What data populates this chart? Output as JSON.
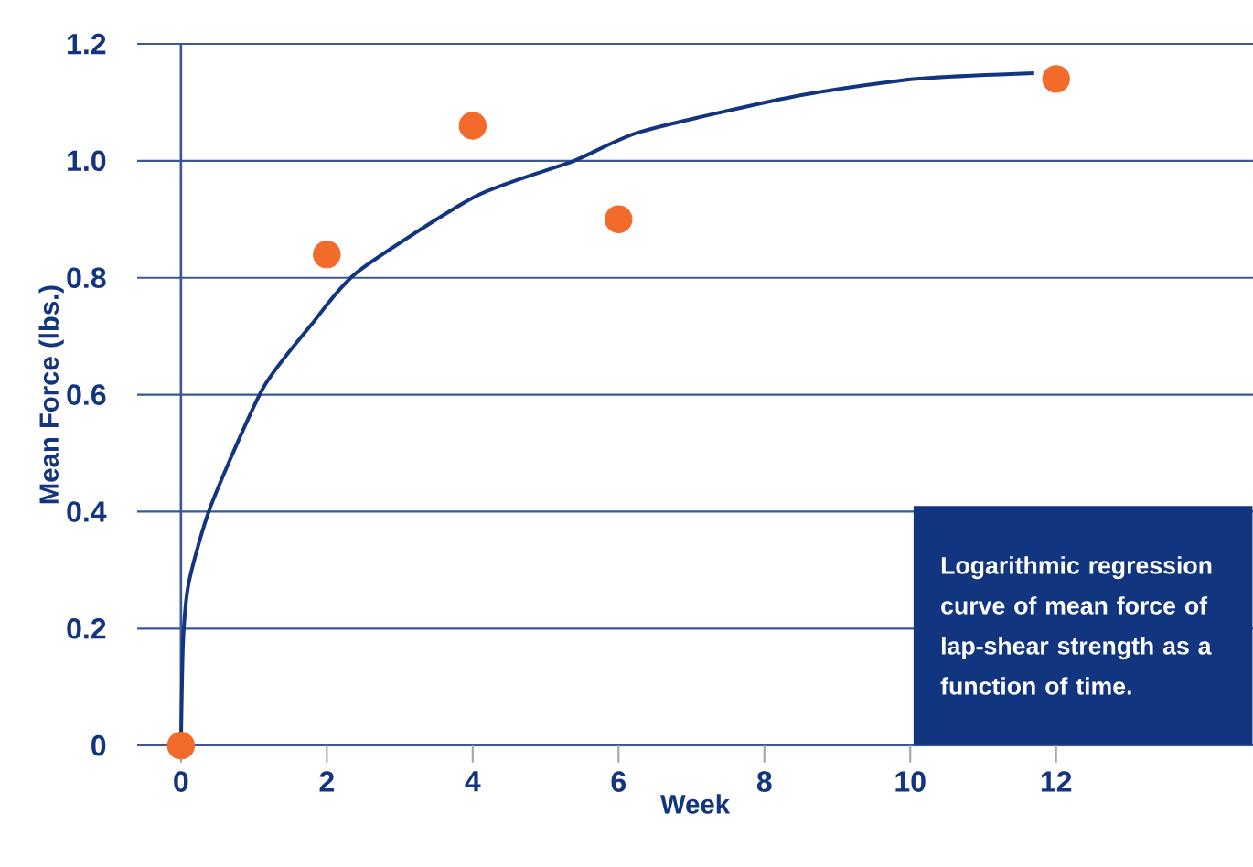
{
  "chart_data": {
    "type": "scatter",
    "xlabel": "Week",
    "ylabel": "Mean Force (lbs.)",
    "annotations": [
      "Logarithmic regression curve of mean force of lap-shear strength as a function of time."
    ],
    "xlim": [
      -0.6,
      14.7
    ],
    "ylim": [
      0,
      1.2
    ],
    "xticks": [
      0,
      2,
      4,
      6,
      8,
      10,
      12
    ],
    "yticks": [
      0,
      0.2,
      0.4,
      0.6,
      0.8,
      {
        "value": 1,
        "label": "1.0"
      },
      1.2
    ],
    "grid": "y",
    "series": [
      {
        "type": "line",
        "color": "#13357f",
        "marker": "none",
        "line_style": "solid",
        "x": [
          0,
          0.03,
          0.11,
          0.41,
          1.12,
          1.79,
          2.42,
          4.05,
          5.39,
          6.31,
          8.41,
          10.08,
          11.7
        ],
        "values": [
          0,
          0.18,
          0.28,
          0.41,
          0.61,
          0.72,
          0.81,
          0.94,
          1.0,
          1.05,
          1.11,
          1.14,
          1.15
        ]
      },
      {
        "color": "#f26b2a",
        "marker": "circle",
        "x": [
          0,
          2,
          4,
          6,
          12
        ],
        "values": [
          0,
          0.84,
          1.06,
          0.9,
          1.14
        ]
      }
    ]
  }
}
